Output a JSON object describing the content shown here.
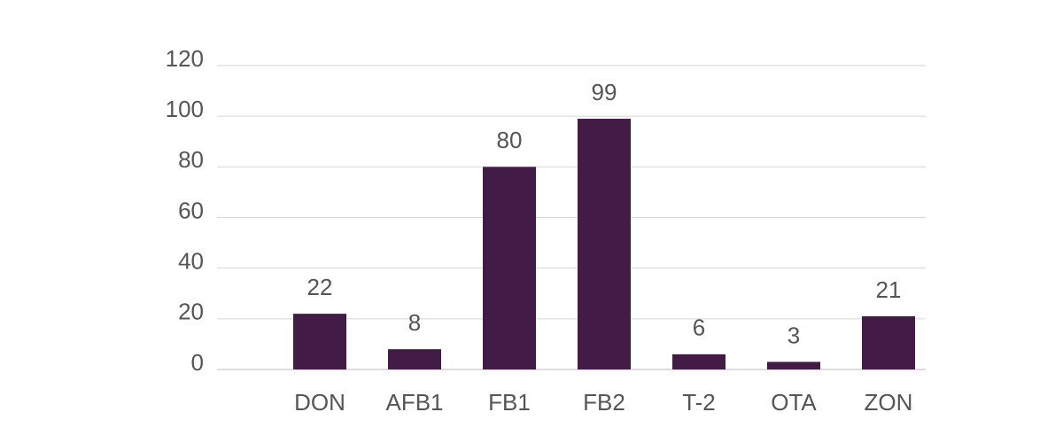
{
  "chart_data": {
    "type": "bar",
    "categories": [
      "DON",
      "AFB1",
      "FB1",
      "FB2",
      "T-2",
      "OTA",
      "ZON"
    ],
    "values": [
      22,
      8,
      80,
      99,
      6,
      3,
      21
    ],
    "color": "#421c47",
    "ylim": [
      0,
      120
    ],
    "yticks": [
      0,
      20,
      40,
      60,
      80,
      100,
      120
    ],
    "grid": true
  }
}
